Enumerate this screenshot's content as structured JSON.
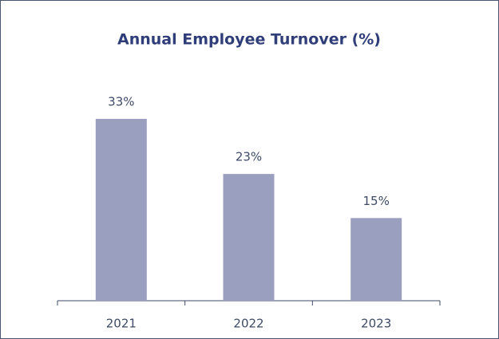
{
  "chart_data": {
    "type": "bar",
    "title": "Annual Employee Turnover (%)",
    "categories": [
      "2021",
      "2022",
      "2023"
    ],
    "values": [
      33,
      23,
      15
    ],
    "value_labels": [
      "33%",
      "23%",
      "15%"
    ],
    "color": "#9b9fbf"
  }
}
